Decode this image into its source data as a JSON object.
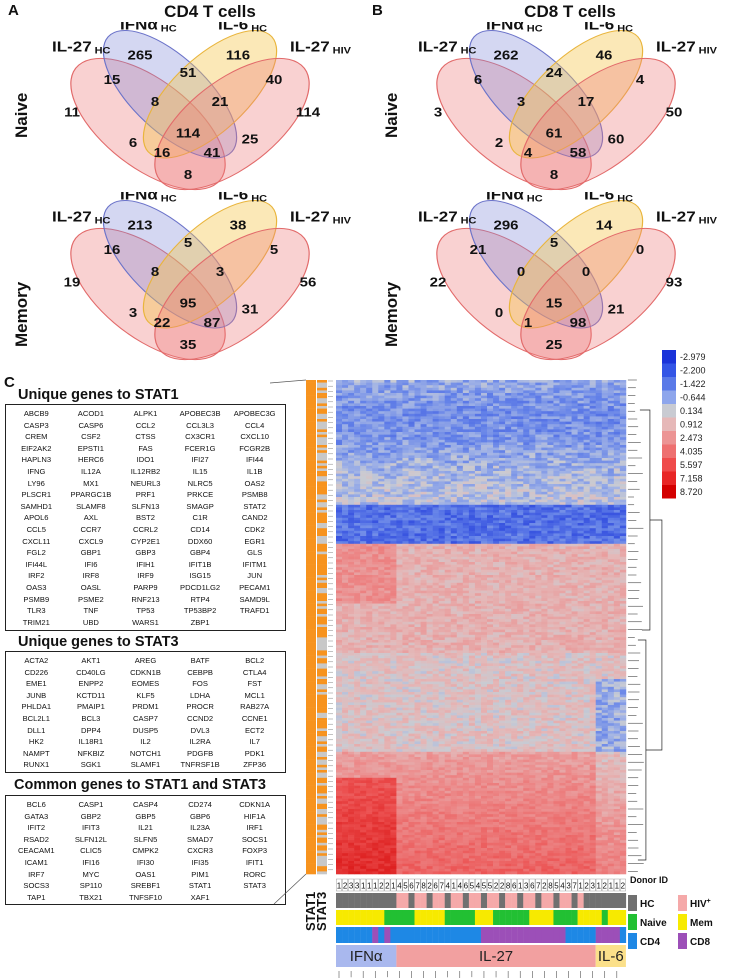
{
  "panelA": {
    "letter": "A",
    "title": "CD4 T cells",
    "naive": {
      "rowLabel": "Naive",
      "labels": {
        "il27hc": "IL-27",
        "il27hc_sub": "HC",
        "ifna": "IFNα",
        "ifna_sub": "HC",
        "il6": "IL-6",
        "il6_sub": "HC",
        "il27hiv": "IL-27",
        "il27hiv_sub": "HIV"
      },
      "counts": {
        "a": "11",
        "b": "265",
        "c": "116",
        "d": "114",
        "ab": "15",
        "bc": "51",
        "cd": "40",
        "abc": "8",
        "bcd": "21",
        "ac": "6",
        "bd": "25",
        "abcd": "114",
        "acd": "16",
        "abd": "41",
        "ad": "8"
      }
    },
    "memory": {
      "rowLabel": "Memory",
      "labels": {
        "il27hc": "IL-27",
        "il27hc_sub": "HC",
        "ifna": "IFNα",
        "ifna_sub": "HC",
        "il6": "IL-6",
        "il6_sub": "HC",
        "il27hiv": "IL-27",
        "il27hiv_sub": "HIV"
      },
      "counts": {
        "a": "19",
        "b": "213",
        "c": "38",
        "d": "56",
        "ab": "16",
        "bc": "5",
        "cd": "5",
        "abc": "8",
        "bcd": "3",
        "ac": "3",
        "bd": "31",
        "abcd": "95",
        "acd": "22",
        "abd": "87",
        "ad": "35"
      }
    }
  },
  "panelB": {
    "letter": "B",
    "title": "CD8 T cells",
    "naive": {
      "labels": {
        "il27hc": "IL-27",
        "il27hc_sub": "HC",
        "ifna": "IFNα",
        "ifna_sub": "HC",
        "il6": "IL-6",
        "il6_sub": "HC",
        "il27hiv": "IL-27",
        "il27hiv_sub": "HIV"
      },
      "counts": {
        "a": "3",
        "b": "262",
        "c": "46",
        "d": "50",
        "ab": "6",
        "bc": "24",
        "cd": "4",
        "abc": "3",
        "bcd": "17",
        "ac": "2",
        "bd": "60",
        "abcd": "61",
        "acd": "4",
        "abd": "58",
        "ad": "8"
      }
    },
    "memory": {
      "labels": {
        "il27hc": "IL-27",
        "il27hc_sub": "HC",
        "ifna": "IFNα",
        "ifna_sub": "HC",
        "il6": "IL-6",
        "il6_sub": "HC",
        "il27hiv": "IL-27",
        "il27hiv_sub": "HIV"
      },
      "counts": {
        "a": "22",
        "b": "296",
        "c": "14",
        "d": "93",
        "ab": "21",
        "bc": "5",
        "cd": "0",
        "abc": "0",
        "bcd": "0",
        "ac": "0",
        "bd": "21",
        "abcd": "15",
        "acd": "1",
        "abd": "98",
        "ad": "25"
      }
    }
  },
  "panelC": {
    "letter": "C",
    "stat1": {
      "title": "Unique genes to STAT1",
      "genes": [
        "ABCB9",
        "ACOD1",
        "ALPK1",
        "APOBEC3B",
        "APOBEC3G",
        "CASP3",
        "CASP6",
        "CCL2",
        "CCL3L3",
        "CCL4",
        "CREM",
        "CSF2",
        "CTSS",
        "CX3CR1",
        "CXCL10",
        "EIF2AK2",
        "EPSTI1",
        "FAS",
        "FCER1G",
        "FCGR2B",
        "HAPLN3",
        "HERC6",
        "IDO1",
        "IFI27",
        "IFI44",
        "IFNG",
        "IL12A",
        "IL12RB2",
        "IL15",
        "IL1B",
        "LY96",
        "MX1",
        "NEURL3",
        "NLRC5",
        "OAS2",
        "PLSCR1",
        "PPARGC1B",
        "PRF1",
        "PRKCE",
        "PSMB8",
        "SAMHD1",
        "SLAMF8",
        "SLFN13",
        "SMAGP",
        "STAT2",
        "APOL6",
        "AXL",
        "BST2",
        "C1R",
        "CAND2",
        "CCL5",
        "CCR7",
        "CCRL2",
        "CD14",
        "CDK2",
        "CXCL11",
        "CXCL9",
        "CYP2E1",
        "DDX60",
        "EGR1",
        "FGL2",
        "GBP1",
        "GBP3",
        "GBP4",
        "GLS",
        "IFI44L",
        "IFI6",
        "IFIH1",
        "IFIT1B",
        "IFITM1",
        "IRF2",
        "IRF8",
        "IRF9",
        "ISG15",
        "JUN",
        "OAS3",
        "OASL",
        "PARP9",
        "PDCD1LG2",
        "PECAM1",
        "PSMB9",
        "PSME2",
        "RNF213",
        "RTP4",
        "SAMD9L",
        "TLR3",
        "TNF",
        "TP53",
        "TP53BP2",
        "TRAFD1",
        "TRIM21",
        "UBD",
        "WARS1",
        "ZBP1",
        ""
      ]
    },
    "stat3": {
      "title": "Unique genes to STAT3",
      "genes": [
        "ACTA2",
        "AKT1",
        "AREG",
        "BATF",
        "BCL2",
        "CD226",
        "CD40LG",
        "CDKN1B",
        "CEBPB",
        "CTLA4",
        "EME1",
        "ENPP2",
        "EOMES",
        "FOS",
        "FST",
        "JUNB",
        "KCTD11",
        "KLF5",
        "LDHA",
        "MCL1",
        "PHLDA1",
        "PMAIP1",
        "PRDM1",
        "PROCR",
        "RAB27A",
        "BCL2L1",
        "BCL3",
        "CASP7",
        "CCND2",
        "CCNE1",
        "DLL1",
        "DPP4",
        "DUSP5",
        "DVL3",
        "ECT2",
        "HK2",
        "IL18R1",
        "IL2",
        "IL2RA",
        "IL7",
        "NAMPT",
        "NFKBIZ",
        "NOTCH1",
        "PDGFB",
        "PDK1",
        "RUNX1",
        "SGK1",
        "SLAMF1",
        "TNFRSF1B",
        "ZFP36"
      ]
    },
    "common": {
      "title": "Common genes to STAT1 and STAT3",
      "genes": [
        "BCL6",
        "CASP1",
        "CASP4",
        "CD274",
        "CDKN1A",
        "GATA3",
        "GBP2",
        "GBP5",
        "GBP6",
        "HIF1A",
        "IFIT2",
        "IFIT3",
        "IL21",
        "IL23A",
        "IRF1",
        "RSAD2",
        "SLFN12L",
        "SLFN5",
        "SMAD7",
        "SOCS1",
        "CEACAM1",
        "CLIC5",
        "CMPK2",
        "CXCR3",
        "FOXP3",
        "ICAM1",
        "IFI16",
        "IFI30",
        "IFI35",
        "IFIT1",
        "IRF7",
        "MYC",
        "OAS1",
        "PIM1",
        "RORC",
        "SOCS3",
        "SP110",
        "SREBF1",
        "STAT1",
        "STAT3",
        "TAP1",
        "TBX21",
        "TNFSF10",
        "XAF1",
        ""
      ]
    },
    "heatmap": {
      "rowLabels": [
        "STAT1",
        "STAT3"
      ],
      "scale": [
        {
          "label": "-2.979",
          "color": "#1a33d9"
        },
        {
          "label": "-2.200",
          "color": "#3355e6"
        },
        {
          "label": "-1.422",
          "color": "#5a7ae8"
        },
        {
          "label": "-0.644",
          "color": "#8ea6ec"
        },
        {
          "label": "0.134",
          "color": "#c9cbd2"
        },
        {
          "label": "0.912",
          "color": "#e6b8b8"
        },
        {
          "label": "2.473",
          "color": "#ec9494"
        },
        {
          "label": "4.035",
          "color": "#ee7070"
        },
        {
          "label": "5.597",
          "color": "#ef4b4b"
        },
        {
          "label": "7.158",
          "color": "#e82626"
        },
        {
          "label": "8.720",
          "color": "#d40000"
        }
      ],
      "donorIds": [
        "1",
        "2",
        "3",
        "3",
        "1",
        "1",
        "1",
        "2",
        "2",
        "1",
        "4",
        "5",
        "6",
        "7",
        "8",
        "2",
        "6",
        "7",
        "4",
        "1",
        "4",
        "6",
        "5",
        "4",
        "5",
        "5",
        "2",
        "2",
        "8",
        "6",
        "1",
        "3",
        "6",
        "7",
        "2",
        "8",
        "5",
        "4",
        "3",
        "7",
        "1",
        "2",
        "3",
        "1",
        "2",
        "1",
        "1",
        "2"
      ],
      "legend": {
        "title": "Donor ID",
        "hc": "HC",
        "hiv": "HIV",
        "hiv_sup": "+",
        "naive": "Naive",
        "mem": "Mem",
        "cd4": "CD4",
        "cd8": "CD8"
      },
      "groups": [
        {
          "label": "IFNα",
          "color": "#a9b8ee"
        },
        {
          "label": "IL-27",
          "color": "#f2a0a0"
        },
        {
          "label": "IL-6",
          "color": "#fbe08a"
        }
      ]
    }
  },
  "colors": {
    "blue": "#7b86d9",
    "yellow": "#f6c64a",
    "red": "#ee7b7b",
    "hc": "#707070",
    "hiv": "#f5a9a9",
    "naive": "#22c033",
    "mem": "#f7ea00",
    "cd4": "#1e88e5",
    "cd8": "#9c4fb8",
    "orange": "#f7931e"
  }
}
